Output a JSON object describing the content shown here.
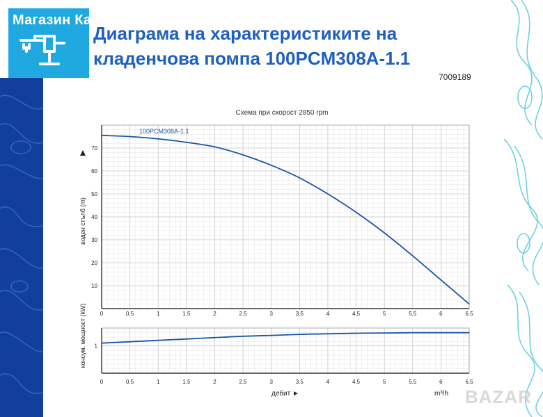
{
  "header": {
    "store_name": "Магазин Капитана",
    "title": "Диаграма на характеристиките на кладенчова помпа 100PCM308A-1.1",
    "code": "7009189",
    "watermark": "BAZAR"
  },
  "colors": {
    "brand_blue": "#1f5fbf",
    "logo_bg": "#20a8e0",
    "side_blue": "#123f9e",
    "curve": "#1a56a8"
  },
  "icons": {
    "logo": "water-pump-icon"
  },
  "chart_data": [
    {
      "type": "line",
      "title": "Схема при скорост 2850 rpm",
      "ylabel": "воден стълб (m)",
      "xlabel": "",
      "xlim": [
        0,
        6.5
      ],
      "ylim": [
        0,
        80
      ],
      "x_ticks": [
        "0",
        "0.5",
        "1",
        "1.5",
        "2",
        "2.5",
        "3",
        "3.5",
        "4",
        "4.5",
        "5",
        "5.5",
        "6",
        "6.5"
      ],
      "y_ticks": [
        "10",
        "20",
        "30",
        "40",
        "50",
        "60",
        "70"
      ],
      "grid": true,
      "series": [
        {
          "name": "100PCM308A-1.1",
          "x": [
            0,
            0.5,
            1,
            1.5,
            2,
            2.5,
            3,
            3.5,
            4,
            4.5,
            5,
            5.5,
            6,
            6.5
          ],
          "y": [
            75.5,
            75,
            74,
            72.5,
            70.5,
            67,
            62.5,
            57,
            50,
            42,
            33,
            23,
            12.5,
            2
          ]
        }
      ]
    },
    {
      "type": "line",
      "title": "",
      "ylabel": "консум. мощност (kW)",
      "xlabel": "дебит ►",
      "xunit": "m³/h",
      "xlim": [
        0,
        6.5
      ],
      "ylim": [
        0,
        1.65
      ],
      "x_ticks": [
        "0",
        "0.5",
        "1",
        "1.5",
        "2",
        "2.5",
        "3",
        "3.5",
        "4",
        "4.5",
        "5",
        "5.5",
        "6",
        "6.5"
      ],
      "y_ticks": [
        "1"
      ],
      "grid": true,
      "series": [
        {
          "x": [
            0,
            0.5,
            1,
            1.5,
            2,
            2.5,
            3,
            3.5,
            4,
            4.5,
            5,
            5.5,
            6,
            6.5
          ],
          "y": [
            1.1,
            1.15,
            1.2,
            1.25,
            1.3,
            1.35,
            1.38,
            1.42,
            1.44,
            1.46,
            1.47,
            1.48,
            1.48,
            1.48
          ]
        }
      ]
    }
  ]
}
